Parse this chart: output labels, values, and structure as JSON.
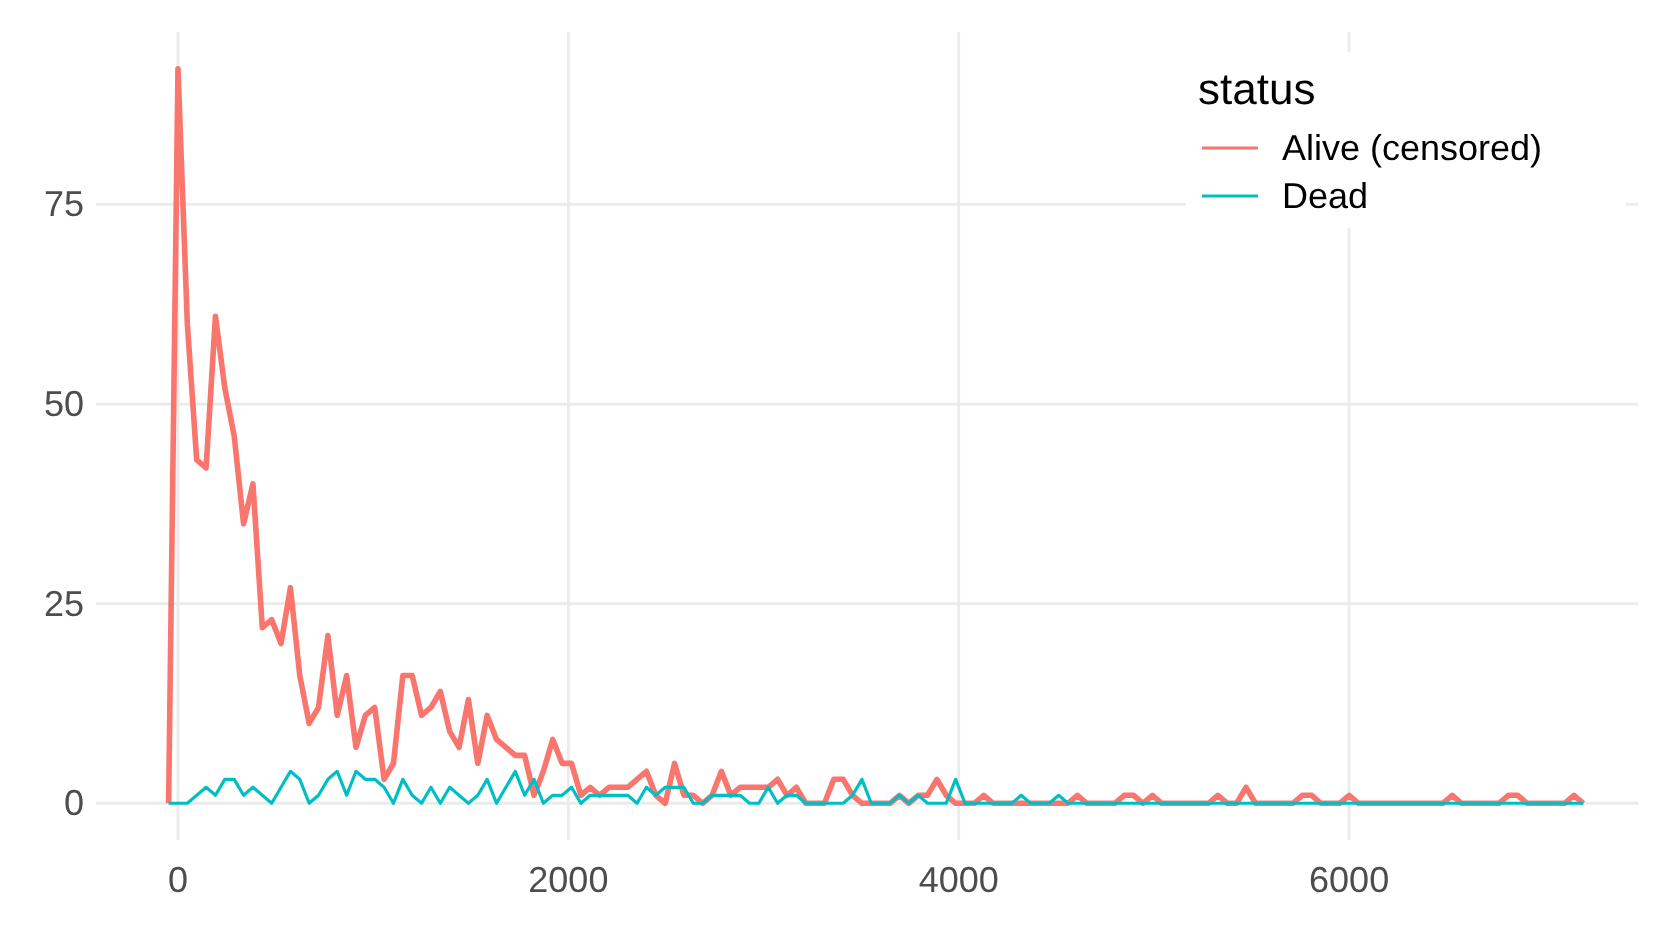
{
  "chart_data": {
    "type": "line",
    "legend_title": "status",
    "legend": "top right",
    "grid": true,
    "line_style": "solid",
    "marker": "none",
    "x": [
      -48,
      0,
      48,
      96,
      144,
      192,
      240,
      288,
      336,
      384,
      432,
      480,
      528,
      576,
      624,
      672,
      720,
      768,
      816,
      864,
      912,
      960,
      1008,
      1056,
      1104,
      1152,
      1200,
      1248,
      1296,
      1344,
      1392,
      1440,
      1488,
      1536,
      1584,
      1632,
      1680,
      1728,
      1776,
      1824,
      1872,
      1920,
      1968,
      2016,
      2064,
      2112,
      2160,
      2208,
      2256,
      2304,
      2352,
      2400,
      2448,
      2496,
      2544,
      2592,
      2640,
      2688,
      2736,
      2784,
      2832,
      2880,
      2928,
      2976,
      3024,
      3072,
      3120,
      3168,
      3216,
      3264,
      3312,
      3360,
      3408,
      3456,
      3504,
      3552,
      3600,
      3648,
      3696,
      3744,
      3792,
      3840,
      3888,
      3936,
      3984,
      4032,
      4080,
      4128,
      4176,
      4224,
      4272,
      4320,
      4368,
      4416,
      4464,
      4512,
      4560,
      4608,
      4656,
      4704,
      4752,
      4800,
      4848,
      4896,
      4944,
      4992,
      5040,
      5088,
      5136,
      5184,
      5232,
      5280,
      5328,
      5376,
      5424,
      5472,
      5520,
      5568,
      5616,
      5664,
      5712,
      5760,
      5808,
      5856,
      5904,
      5952,
      6000,
      6048,
      6096,
      6144,
      6192,
      6240,
      6288,
      6336,
      6384,
      6432,
      6480,
      6528,
      6576,
      6624,
      6672,
      6720,
      6768,
      6816,
      6864,
      6912,
      6960,
      7008,
      7056,
      7104,
      7152,
      7200
    ],
    "series": [
      {
        "name": "Alive (censored)",
        "color": "#f8766d",
        "values": [
          0,
          92,
          60,
          43,
          42,
          61,
          52,
          46,
          35,
          40,
          22,
          23,
          20,
          27,
          16,
          10,
          12,
          21,
          11,
          16,
          7,
          11,
          12,
          3,
          5,
          16,
          16,
          11,
          12,
          14,
          9,
          7,
          13,
          5,
          11,
          8,
          7,
          6,
          6,
          1,
          4,
          8,
          5,
          5,
          1,
          2,
          1,
          2,
          2,
          2,
          3,
          4,
          1,
          0,
          5,
          1,
          1,
          0,
          1,
          4,
          1,
          2,
          2,
          2,
          2,
          3,
          1,
          2,
          0,
          0,
          0,
          3,
          3,
          1,
          0,
          0,
          0,
          0,
          1,
          0,
          1,
          1,
          3,
          1,
          0,
          0,
          0,
          1,
          0,
          0,
          0,
          0,
          0,
          0,
          0,
          0,
          0,
          1,
          0,
          0,
          0,
          0,
          1,
          1,
          0,
          1,
          0,
          0,
          0,
          0,
          0,
          0,
          1,
          0,
          0,
          2,
          0,
          0,
          0,
          0,
          0,
          1,
          1,
          0,
          0,
          0,
          1,
          0,
          0,
          0,
          0,
          0,
          0,
          0,
          0,
          0,
          0,
          1,
          0,
          0,
          0,
          0,
          0,
          1,
          1,
          0,
          0,
          0,
          0,
          0,
          1,
          0
        ]
      },
      {
        "name": "Dead",
        "color": "#00bfc4",
        "values": [
          0,
          0,
          0,
          1,
          2,
          1,
          3,
          3,
          1,
          2,
          1,
          0,
          2,
          4,
          3,
          0,
          1,
          3,
          4,
          1,
          4,
          3,
          3,
          2,
          0,
          3,
          1,
          0,
          2,
          0,
          2,
          1,
          0,
          1,
          3,
          0,
          2,
          4,
          1,
          3,
          0,
          1,
          1,
          2,
          0,
          1,
          1,
          1,
          1,
          1,
          0,
          2,
          1,
          2,
          2,
          2,
          0,
          0,
          1,
          1,
          1,
          1,
          0,
          0,
          2,
          0,
          1,
          1,
          0,
          0,
          0,
          0,
          0,
          1,
          3,
          0,
          0,
          0,
          1,
          0,
          1,
          0,
          0,
          0,
          3,
          0,
          0,
          0,
          0,
          0,
          0,
          1,
          0,
          0,
          0,
          1,
          0,
          0,
          0,
          0,
          0,
          0,
          0,
          0,
          0,
          0,
          0,
          0,
          0,
          0,
          0,
          0,
          0,
          0,
          0,
          0,
          0,
          0,
          0,
          0,
          0,
          0,
          0,
          0,
          0,
          0,
          0,
          0,
          0,
          0,
          0,
          0,
          0,
          0,
          0,
          0,
          0,
          0,
          0,
          0,
          0,
          0,
          0,
          0,
          0,
          0,
          0,
          0,
          0,
          0,
          0,
          0
        ]
      }
    ],
    "xlim": [
      -420,
      7480
    ],
    "ylim": [
      -4.6,
      96.6
    ],
    "xticks": [
      0,
      2000,
      4000,
      6000
    ],
    "yticks": [
      0,
      25,
      50,
      75
    ]
  }
}
